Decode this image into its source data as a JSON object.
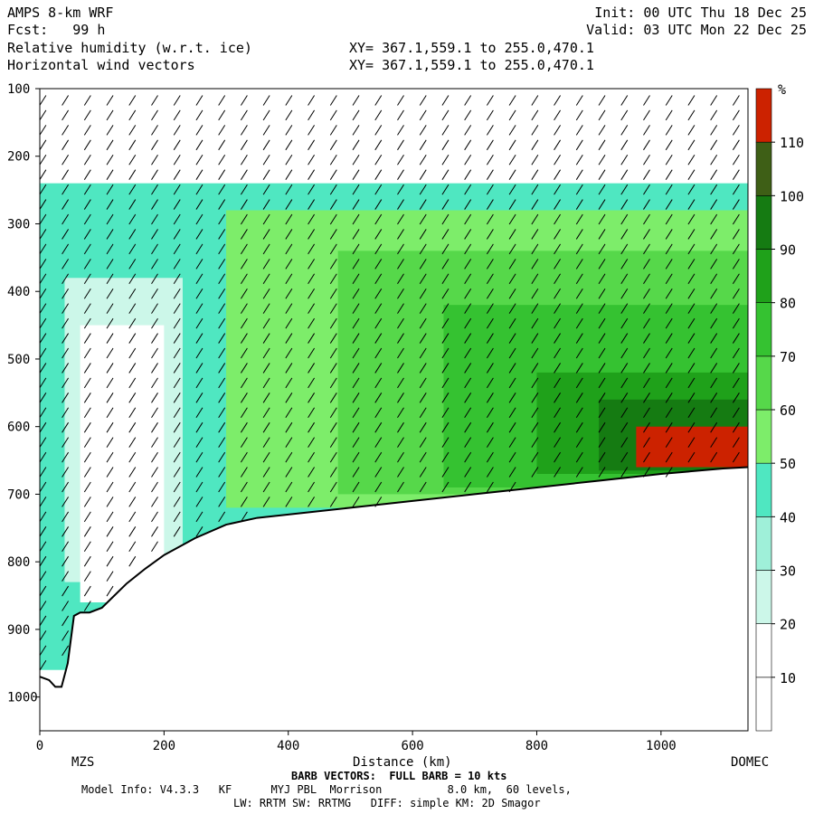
{
  "header": {
    "model": "AMPS 8-km WRF",
    "fcst": "Fcst:   99 h",
    "field1": "Relative humidity (w.r.t. ice)",
    "field2": "Horizontal wind vectors",
    "init": "Init: 00 UTC Thu 18 Dec 25",
    "valid": "Valid: 03 UTC Mon 22 Dec 25",
    "xy1": "XY= 367.1,559.1 to 255.0,470.1",
    "xy2": "XY= 367.1,559.1 to 255.0,470.1"
  },
  "footer": {
    "barb": "BARB VECTORS:  FULL BARB = 10 kts",
    "model_info": "Model Info: V4.3.3   KF      MYJ PBL  Morrison          8.0 km,  60 levels,",
    "physics": "LW: RRTM SW: RRTMG   DIFF: simple KM: 2D Smagor"
  },
  "colors": {
    "white": "#ffffff",
    "c30": "#ccf7e9",
    "c40": "#9ff0d9",
    "c50": "#4fe7c1",
    "c60": "#7ded6a",
    "c70": "#56d84a",
    "c80": "#35c231",
    "c90": "#1fa11a",
    "c100": "#157b12",
    "c110": "#3e5f16",
    "c120": "#cc2200"
  },
  "chart_data": {
    "type": "heatmap",
    "xlabel": "Distance (km)",
    "xticks": [
      0,
      200,
      400,
      600,
      800,
      1000
    ],
    "xlim": [
      0,
      1140
    ],
    "yticks": [
      100,
      200,
      300,
      400,
      500,
      600,
      700,
      800,
      900,
      1000
    ],
    "ylim": [
      1050,
      100
    ],
    "endpoints": {
      "left": "MZS",
      "right": "DOMEC"
    },
    "colorbar": {
      "unit": "%",
      "levels": [
        10,
        20,
        30,
        40,
        50,
        60,
        70,
        80,
        90,
        100,
        110
      ]
    },
    "terrain": {
      "distance_km": [
        0,
        15,
        25,
        35,
        45,
        55,
        65,
        80,
        100,
        120,
        140,
        170,
        200,
        250,
        300,
        350,
        400,
        500,
        600,
        700,
        800,
        900,
        1000,
        1100,
        1140
      ],
      "pressure_hpa": [
        970,
        975,
        985,
        985,
        950,
        880,
        875,
        875,
        868,
        850,
        832,
        810,
        790,
        765,
        745,
        735,
        730,
        720,
        710,
        700,
        690,
        680,
        670,
        662,
        660
      ]
    },
    "rh_regions": [
      {
        "level": 40,
        "x": [
          0,
          1140
        ],
        "p": [
          240,
          960
        ]
      },
      {
        "level": 30,
        "x": [
          40,
          230
        ],
        "p": [
          380,
          830
        ]
      },
      {
        "level": 20,
        "x": [
          65,
          200
        ],
        "p": [
          450,
          860
        ]
      },
      {
        "level": 60,
        "x": [
          300,
          1140
        ],
        "p": [
          280,
          720
        ]
      },
      {
        "level": 70,
        "x": [
          480,
          1140
        ],
        "p": [
          340,
          700
        ]
      },
      {
        "level": 80,
        "x": [
          650,
          1140
        ],
        "p": [
          420,
          690
        ]
      },
      {
        "level": 90,
        "x": [
          800,
          1140
        ],
        "p": [
          520,
          670
        ]
      },
      {
        "level": 100,
        "x": [
          900,
          1140
        ],
        "p": [
          560,
          665
        ]
      },
      {
        "level": 110,
        "x": [
          960,
          1140
        ],
        "p": [
          600,
          660
        ]
      }
    ]
  }
}
